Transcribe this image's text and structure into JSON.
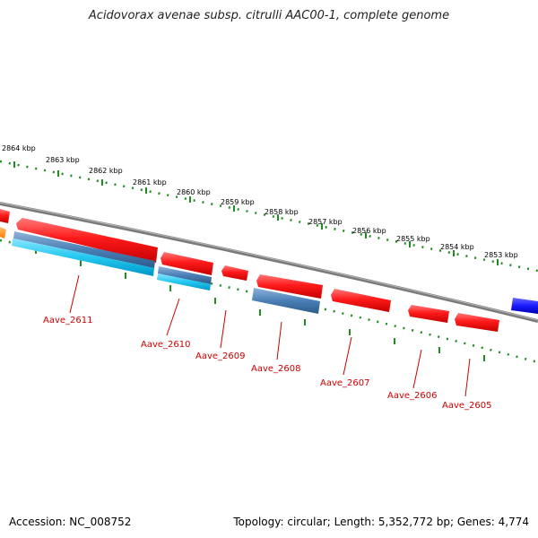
{
  "title": "Acidovorax avenae subsp. citrulli AAC00-1, complete genome",
  "ruler": {
    "labels": [
      "2864 kbp",
      "2863 kbp",
      "2862 kbp",
      "2861 kbp",
      "2860 kbp",
      "2859 kbp",
      "2858 kbp",
      "2857 kbp",
      "2856 kbp",
      "2855 kbp",
      "2854 kbp",
      "2853 kbp"
    ]
  },
  "genes": [
    {
      "label": "Aave_2611",
      "color": "#ff1a1a"
    },
    {
      "label": "Aave_2610",
      "color": "#ff1a1a"
    },
    {
      "label": "Aave_2609",
      "color": "#ff1a1a"
    },
    {
      "label": "Aave_2608",
      "color": "#ff1a1a"
    },
    {
      "label": "Aave_2607",
      "color": "#ff1a1a"
    },
    {
      "label": "Aave_2606",
      "color": "#ff1a1a"
    },
    {
      "label": "Aave_2605",
      "color": "#ff1a1a"
    }
  ],
  "colors": {
    "forward_gene": "#ff1a1a",
    "reverse_gene_edge": "#1a1aff",
    "orange_gene": "#ff8c1a",
    "blue_feature": "#4a7fb5",
    "cyan_feature": "#22c8f0",
    "backbone": "#808080",
    "ticks": "#228b22",
    "gene_label": "#cc0000"
  },
  "footer": {
    "accession": "Accession: NC_008752",
    "info": "Topology: circular; Length: 5,352,772 bp; Genes: 4,774"
  }
}
